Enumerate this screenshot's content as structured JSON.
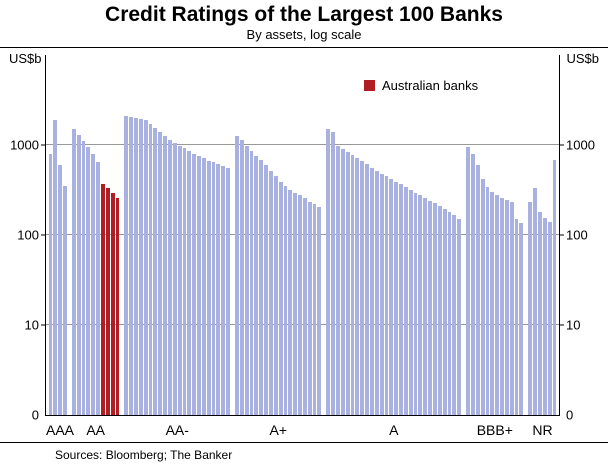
{
  "title": "Credit Ratings of the Largest 100 Banks",
  "subtitle": "By assets, log scale",
  "axis": {
    "unit_left": "US$b",
    "unit_right": "US$b",
    "yticks": [
      1000,
      100,
      10,
      0
    ]
  },
  "legend": {
    "label": "Australian banks"
  },
  "footer": {
    "source": "Sources: Bloomberg; The Banker"
  },
  "colors": {
    "bar": "#a8b1e0",
    "bar_highlight": "#b01e23",
    "grid": "#999999",
    "axis": "#000000"
  },
  "chart_data": {
    "type": "bar",
    "title": "Credit Ratings of the Largest 100 Banks",
    "subtitle": "By assets, log scale",
    "ylabel": "US$b",
    "yscale": "log",
    "ylim": [
      1,
      10000
    ],
    "gridlines": [
      10,
      100,
      1000
    ],
    "legend_position": "top-right-inside",
    "categories": [
      "AAA",
      "AA",
      "AA-",
      "A+",
      "A",
      "BBB+",
      "NR"
    ],
    "groups": [
      {
        "label": "AAA",
        "values": [
          800,
          1900,
          600,
          350
        ],
        "highlight": []
      },
      {
        "label": "AA",
        "values": [
          1500,
          1300,
          1100,
          950,
          800,
          650,
          370,
          330,
          295,
          255
        ],
        "highlight": [
          6,
          7,
          8,
          9
        ]
      },
      {
        "label": "AA-",
        "values": [
          2100,
          2050,
          2000,
          1950,
          1900,
          1700,
          1550,
          1400,
          1250,
          1150,
          1050,
          980,
          920,
          860,
          800,
          750,
          710,
          670,
          640,
          610,
          580,
          550
        ],
        "highlight": []
      },
      {
        "label": "A+",
        "values": [
          1250,
          1150,
          980,
          850,
          760,
          680,
          600,
          520,
          450,
          390,
          350,
          320,
          295,
          275,
          255,
          235,
          220,
          205
        ],
        "highlight": []
      },
      {
        "label": "A",
        "values": [
          1500,
          1400,
          980,
          900,
          840,
          780,
          720,
          660,
          610,
          560,
          520,
          480,
          450,
          420,
          390,
          365,
          340,
          315,
          295,
          275,
          255,
          240,
          225,
          210,
          195,
          180,
          165,
          150
        ],
        "highlight": []
      },
      {
        "label": "BBB+",
        "values": [
          950,
          800,
          600,
          420,
          340,
          300,
          280,
          260,
          245,
          230,
          150,
          135
        ],
        "highlight": []
      },
      {
        "label": "NR",
        "values": [
          230,
          330,
          180,
          155,
          140,
          680
        ],
        "highlight": []
      }
    ],
    "highlight_series_name": "Australian banks"
  }
}
